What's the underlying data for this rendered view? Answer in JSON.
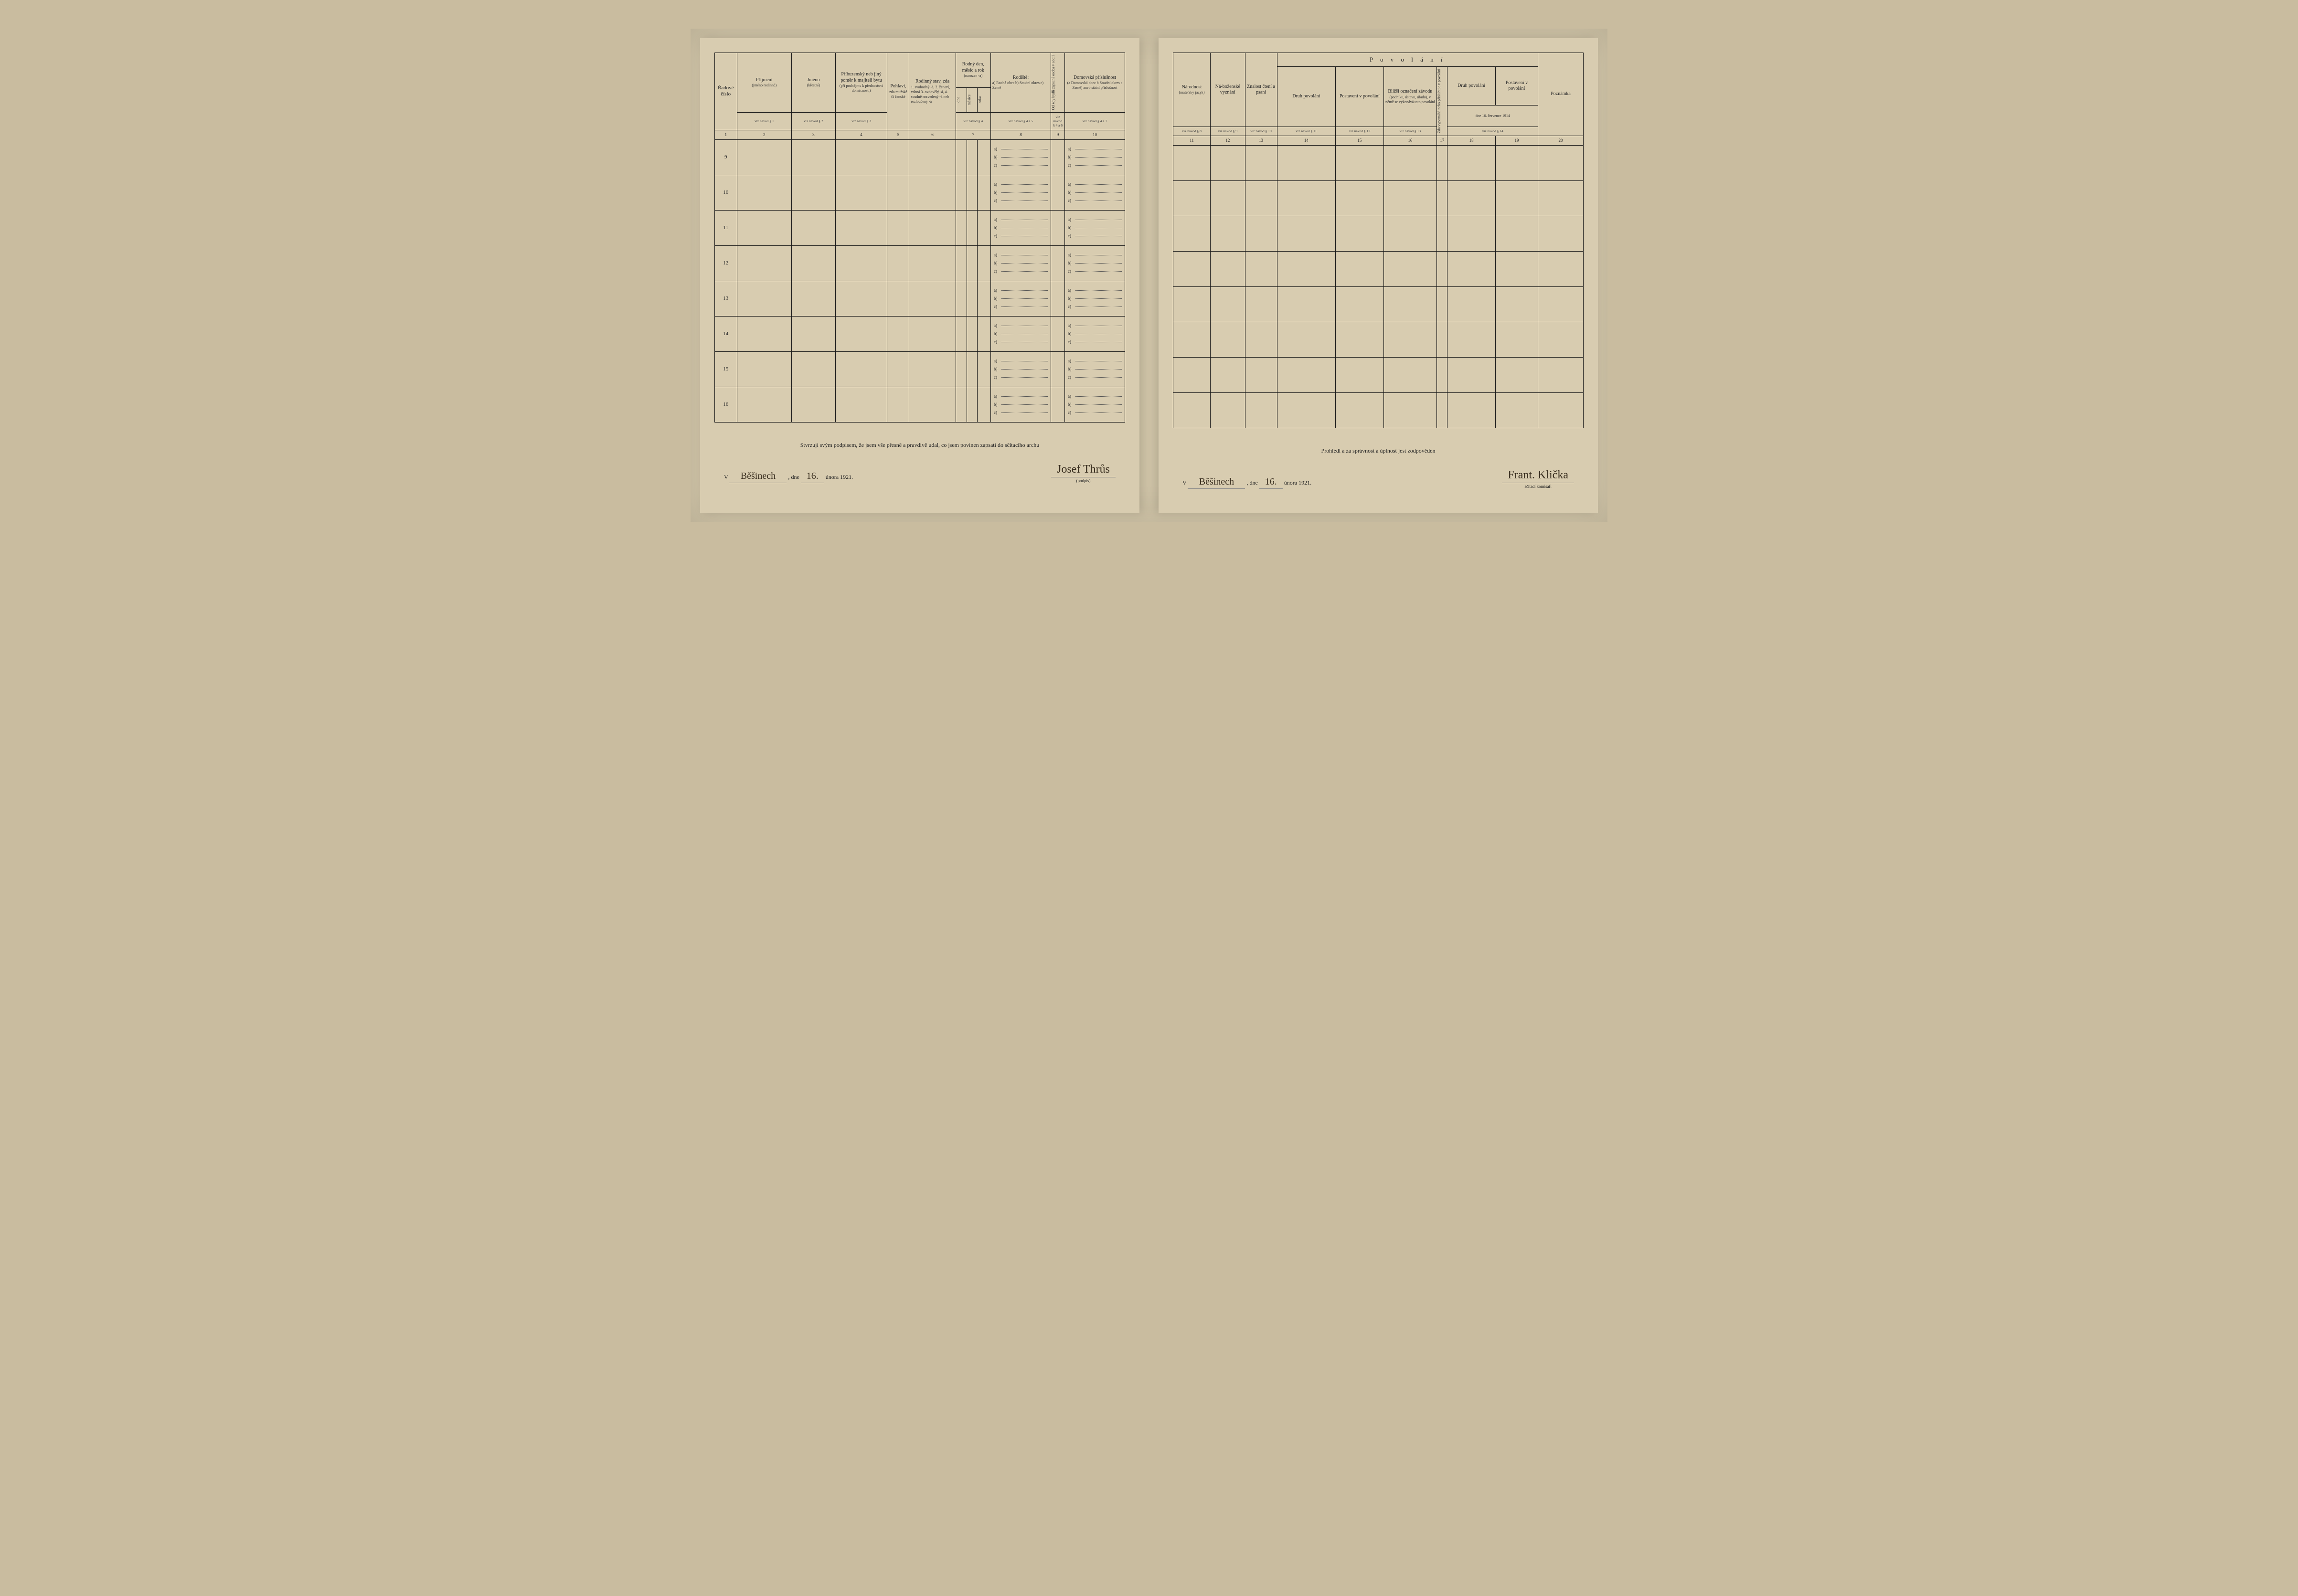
{
  "left": {
    "headers": {
      "col1": "Řadové číslo",
      "col2": {
        "main": "Příjmení",
        "sub": "(jméno rodinné)"
      },
      "col3": {
        "main": "Jméno",
        "sub": "(křestní)"
      },
      "col4": {
        "main": "Příbuzenský neb jiný poměr k majiteli bytu",
        "sub": "(při podnájmu k přednostovi domácnosti)"
      },
      "col5": {
        "main": "Pohlaví,",
        "sub": "zda mužské či ženské"
      },
      "col6": {
        "main": "Rodinný stav, zda",
        "sub": "1. svobodný -á, 2. ženatý, vdaná 3. ovdovělý -á, 4. soudně rozvedený -á neb rozloučený -á"
      },
      "col7": {
        "main": "Rodný den, měsíc a rok",
        "sub": "(narozen -a)",
        "s1": "dne",
        "s2": "měsíce",
        "s3": "roku"
      },
      "col8": {
        "main": "Rodiště:",
        "sub": "a) Rodná obec b) Soudní okres c) Země"
      },
      "col9": "Od kdy bydlí zapsaná osoba v obci?",
      "col10": {
        "main": "Domovská příslušnost",
        "sub": "(a Domovská obec b Soudní okres c Země) aneb státní příslušnost"
      }
    },
    "refs": {
      "c2": "viz návod § 1",
      "c3": "viz návod § 2",
      "c4": "viz návod § 3",
      "c7": "viz návod § 4",
      "c8": "viz návod § 4 a 5",
      "c9": "viz návod § 4 a 6",
      "c10": "viz návod § 4 a 7"
    },
    "nums": [
      "1",
      "2",
      "3",
      "4",
      "5",
      "6",
      "7",
      "8",
      "9",
      "10"
    ],
    "rows": [
      "9",
      "10",
      "11",
      "12",
      "13",
      "14",
      "15",
      "16"
    ],
    "abc": {
      "a": "a)",
      "b": "b)",
      "c": "c)"
    },
    "footer": {
      "affirm": "Stvrzuji svým podpisem, že jsem vše přesně a pravdivě udal, co jsem povinen zapsati do sčítacího archu",
      "place_prefix": "V",
      "place": "Běšinech",
      "date_prefix": ", dne",
      "day": "16.",
      "month_year": "února 1921.",
      "signature": "Josef Thrůs",
      "sigcaption": "(podpis)"
    }
  },
  "right": {
    "title": "P o v o l á n í",
    "headers": {
      "col11": {
        "main": "Národnost",
        "sub": "(mateřský jazyk)"
      },
      "col12": {
        "main": "Ná-boženské vyznání"
      },
      "col13": {
        "main": "Znalost čtení a psaní"
      },
      "col14": "Druh povolání",
      "col15": "Postavení v povolání",
      "col16": {
        "main": "Bližší označení závodu",
        "sub": "(podniku, ústavu, úřadu), v němž se vykonává toto povolání"
      },
      "col17v": "Zda vypomáhá nebo přisluhuje v povolání",
      "col18": "Druh povolání",
      "col19": "Postavení v povolání",
      "col20": "Poznámka",
      "subdate": "dne 16. července 1914"
    },
    "refs": {
      "c11": "viz návod § 8",
      "c12": "viz návod § 9",
      "c13": "viz návod § 10",
      "c14": "viz návod § 11",
      "c15": "viz návod § 12",
      "c16": "viz návod § 13",
      "c1819": "viz návod § 14"
    },
    "nums": [
      "11",
      "12",
      "13",
      "14",
      "15",
      "16",
      "17",
      "18",
      "19",
      "20"
    ],
    "footer": {
      "affirm": "Prohlédl a za správnost a úplnost jest zodpověden",
      "place_prefix": "V",
      "place": "Běšinech",
      "date_prefix": ", dne",
      "day": "16.",
      "month_year": "února 1921.",
      "signature": "Frant. Klička",
      "sigcaption": "sčítací komisař."
    }
  }
}
